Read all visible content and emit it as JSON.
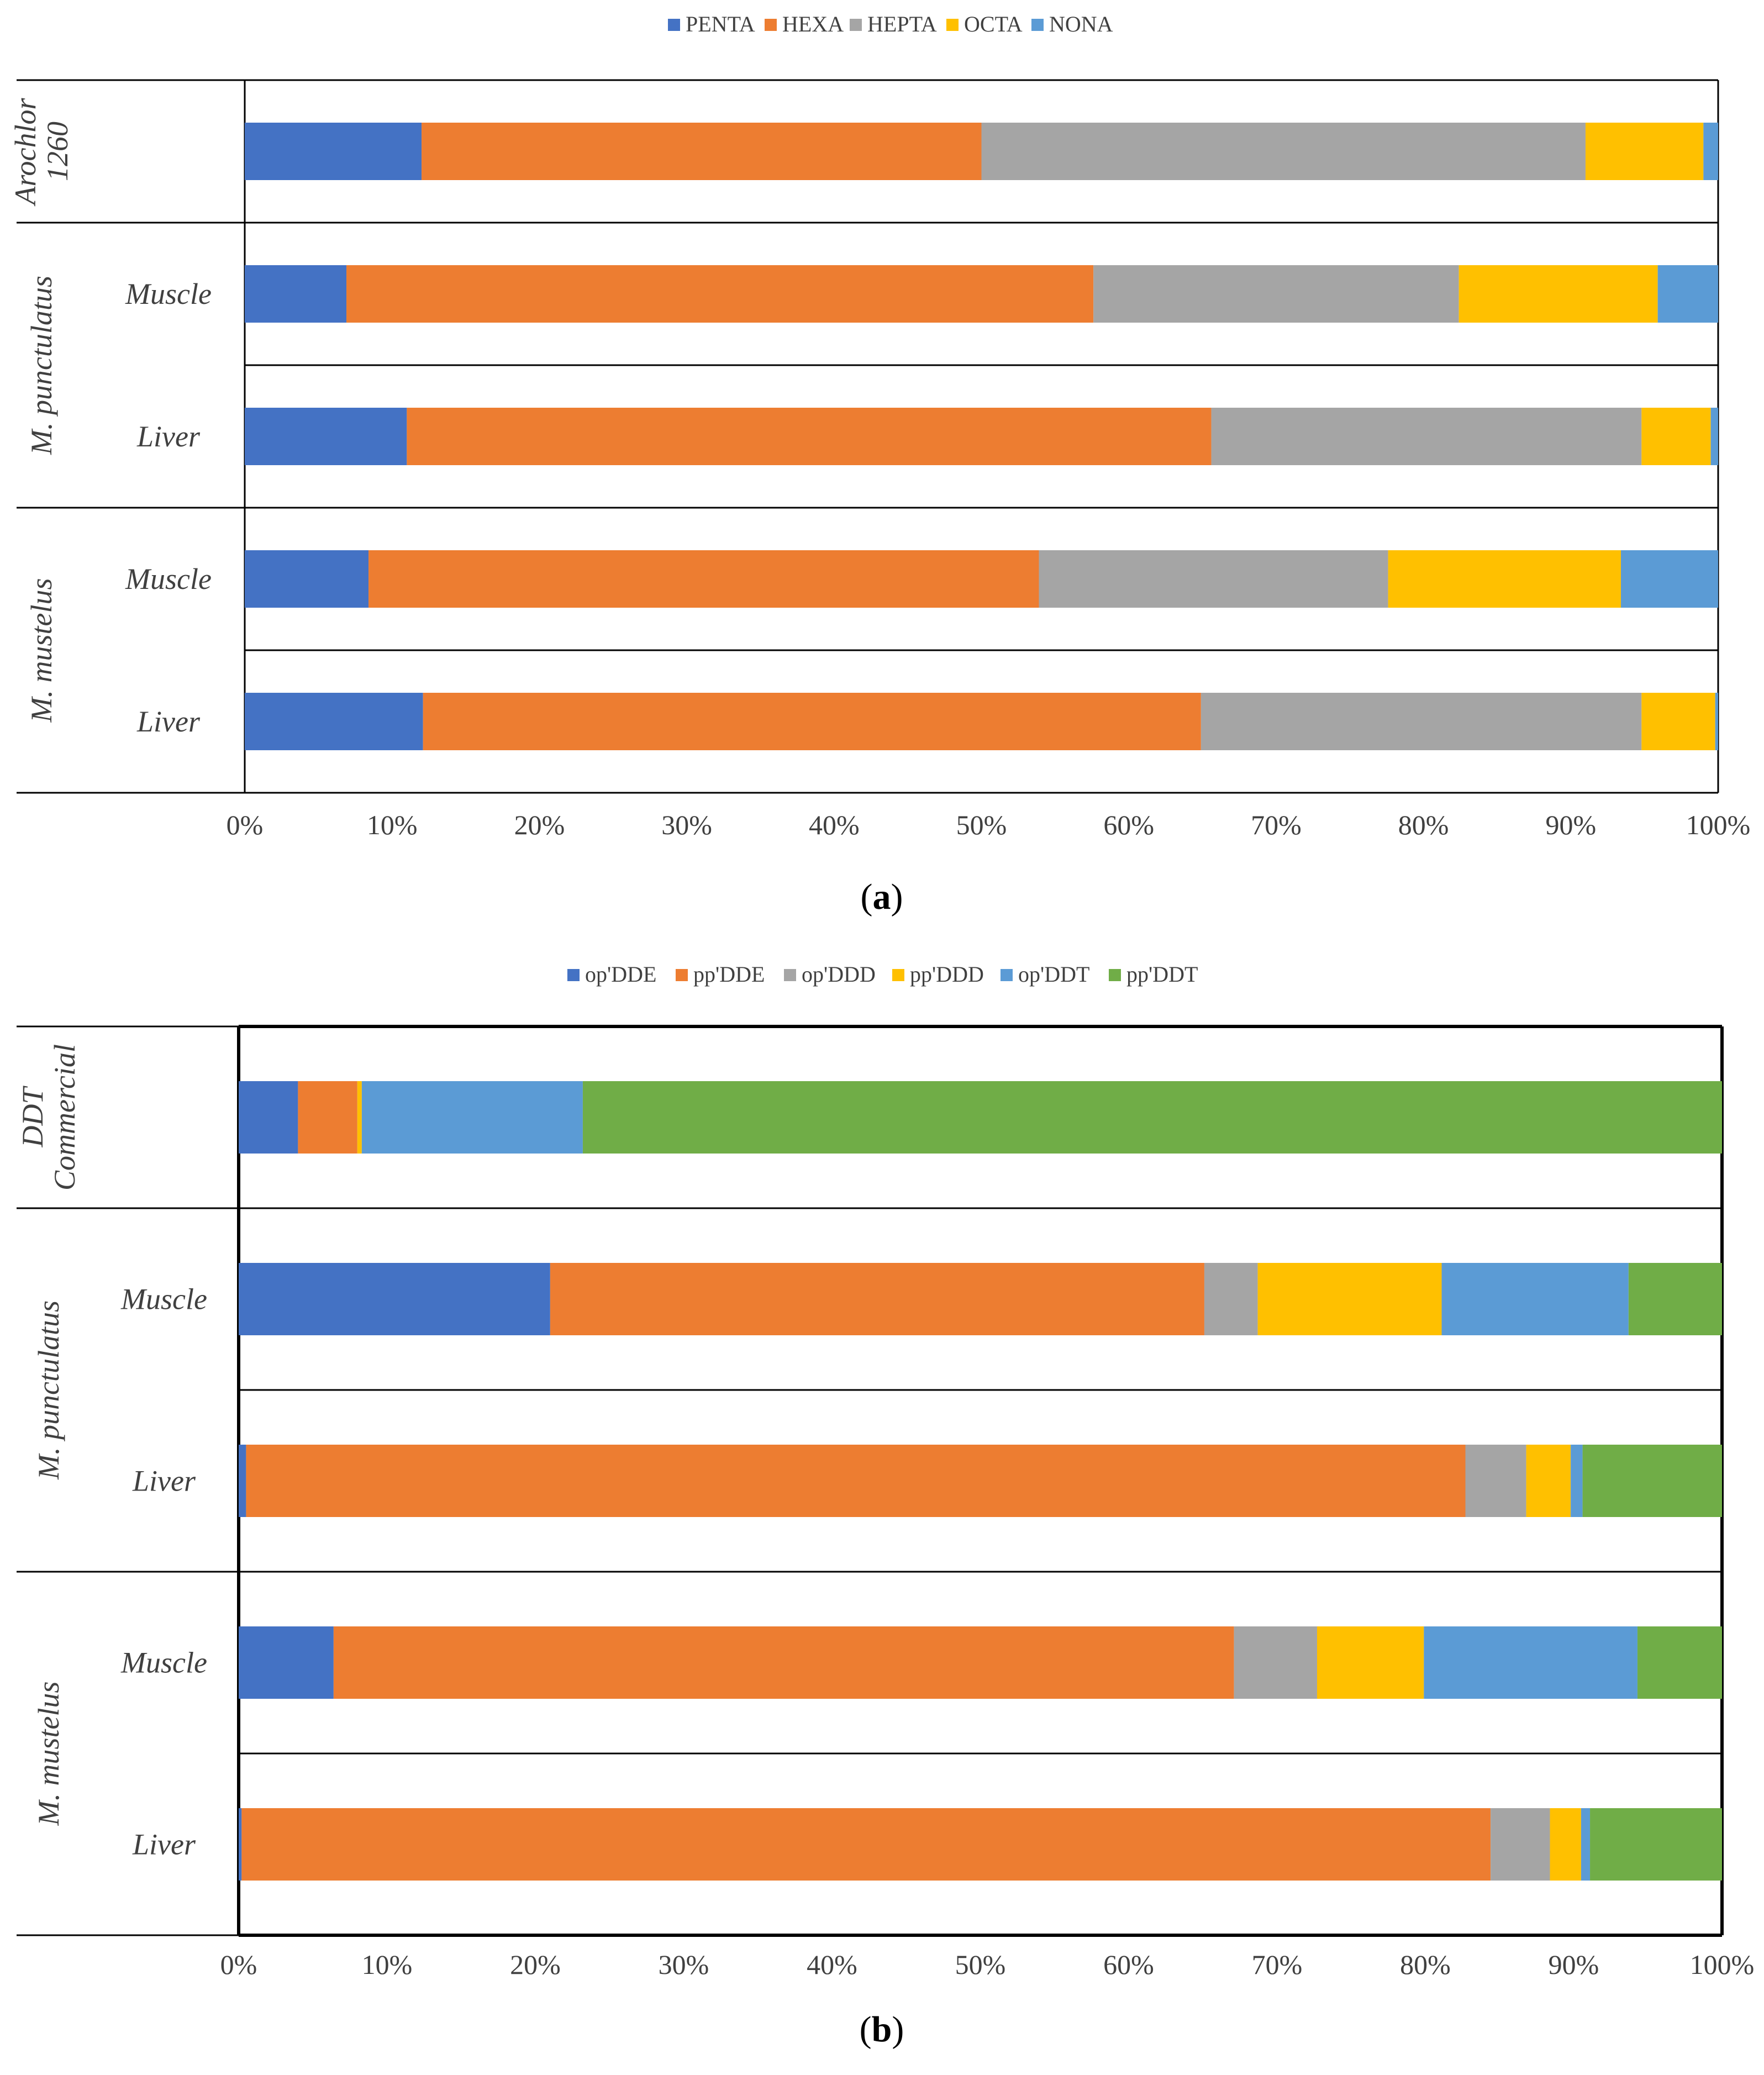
{
  "chart_data": [
    {
      "type": "bar",
      "orientation": "horizontal",
      "stacked": "percent",
      "panel_label": "(a)",
      "panel_letter": "a",
      "legend": {
        "placement": "top-center"
      },
      "xlim": [
        0,
        100
      ],
      "x_ticks": [
        "0%",
        "10%",
        "20%",
        "30%",
        "40%",
        "50%",
        "60%",
        "70%",
        "80%",
        "90%",
        "100%"
      ],
      "grid": false,
      "groups": [
        {
          "label": "Arochlor 1260",
          "label_lines": [
            "Arochlor",
            "1260"
          ],
          "rows": [
            ""
          ]
        },
        {
          "label": "M. punctulatus",
          "label_lines": [
            "M. punctulatus"
          ],
          "rows": [
            "Muscle",
            "Liver"
          ]
        },
        {
          "label": "M. mustelus",
          "label_lines": [
            "M. mustelus"
          ],
          "rows": [
            "Muscle",
            "Liver"
          ]
        }
      ],
      "categories": [
        "Arochlor 1260",
        "M. punctulatus Muscle",
        "M. punctulatus Liver",
        "M. mustelus Muscle",
        "M. mustelus Liver"
      ],
      "series": [
        {
          "name": "PENTA",
          "color": "#4472C4",
          "values": [
            12.0,
            6.9,
            11.0,
            8.4,
            12.1
          ]
        },
        {
          "name": "HEXA",
          "color": "#ED7D31",
          "values": [
            38.0,
            50.7,
            54.6,
            45.5,
            52.8
          ]
        },
        {
          "name": "HEPTA",
          "color": "#A5A5A5",
          "values": [
            41.0,
            24.8,
            29.2,
            23.7,
            29.9
          ]
        },
        {
          "name": "OCTA",
          "color": "#FFC000",
          "values": [
            8.0,
            13.5,
            4.7,
            15.8,
            5.0
          ]
        },
        {
          "name": "NONA",
          "color": "#5B9BD5",
          "values": [
            1.0,
            4.1,
            0.5,
            6.6,
            0.2
          ]
        }
      ]
    },
    {
      "type": "bar",
      "orientation": "horizontal",
      "stacked": "percent",
      "panel_label": "(b)",
      "panel_letter": "b",
      "legend": {
        "placement": "top-center"
      },
      "xlim": [
        0,
        100
      ],
      "x_ticks": [
        "0%",
        "10%",
        "20%",
        "30%",
        "40%",
        "50%",
        "60%",
        "70%",
        "80%",
        "90%",
        "100%"
      ],
      "grid": false,
      "groups": [
        {
          "label": "DDT Commercial",
          "label_lines": [
            "DDT",
            "Commercial"
          ],
          "rows": [
            ""
          ]
        },
        {
          "label": "M. punctulatus",
          "label_lines": [
            "M. punctulatus"
          ],
          "rows": [
            "Muscle",
            "Liver"
          ]
        },
        {
          "label": "M. mustelus",
          "label_lines": [
            "M. mustelus"
          ],
          "rows": [
            "Muscle",
            "Liver"
          ]
        }
      ],
      "categories": [
        "DDT Commercial",
        "M. punctulatus Muscle",
        "M. punctulatus Liver",
        "M. mustelus Muscle",
        "M. mustelus Liver"
      ],
      "series": [
        {
          "name": "op'DDE",
          "color": "#4472C4",
          "values": [
            4.0,
            21.0,
            0.5,
            6.4,
            0.2
          ]
        },
        {
          "name": "pp'DDE",
          "color": "#ED7D31",
          "values": [
            4.0,
            44.1,
            82.2,
            60.7,
            84.2
          ]
        },
        {
          "name": "op'DDD",
          "color": "#A5A5A5",
          "values": [
            0.0,
            3.6,
            4.1,
            5.6,
            4.0
          ]
        },
        {
          "name": "pp'DDD",
          "color": "#FFC000",
          "values": [
            0.3,
            12.4,
            3.0,
            7.2,
            2.1
          ]
        },
        {
          "name": "op'DDT",
          "color": "#5B9BD5",
          "values": [
            14.9,
            12.6,
            0.8,
            14.4,
            0.6
          ]
        },
        {
          "name": "pp'DDT",
          "color": "#70AD47",
          "values": [
            76.8,
            6.3,
            9.4,
            5.7,
            8.9
          ]
        }
      ]
    }
  ]
}
